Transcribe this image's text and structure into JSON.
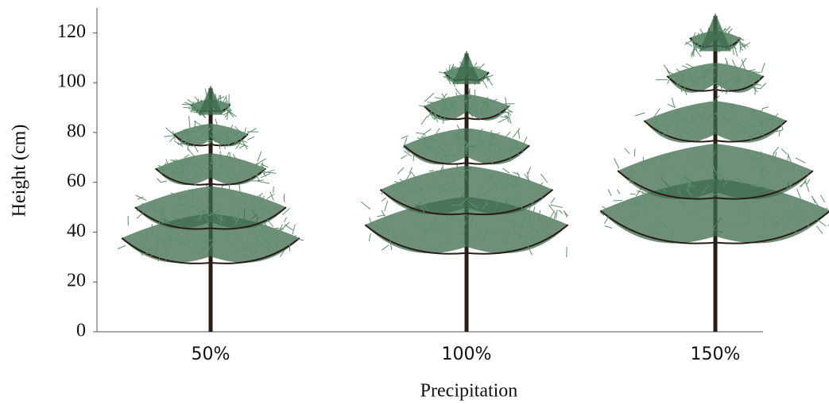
{
  "chart_data": {
    "type": "pictograph",
    "x_label": "Precipitation",
    "y_label": "Height (cm)",
    "categories": [
      "50%",
      "100%",
      "150%"
    ],
    "values": [
      99,
      113,
      128
    ],
    "color": "#3d6b4c",
    "trunk_color": "#2a1c16",
    "ylim": [
      0,
      130
    ],
    "yticks": [
      0,
      20,
      40,
      60,
      80,
      100,
      120
    ]
  }
}
